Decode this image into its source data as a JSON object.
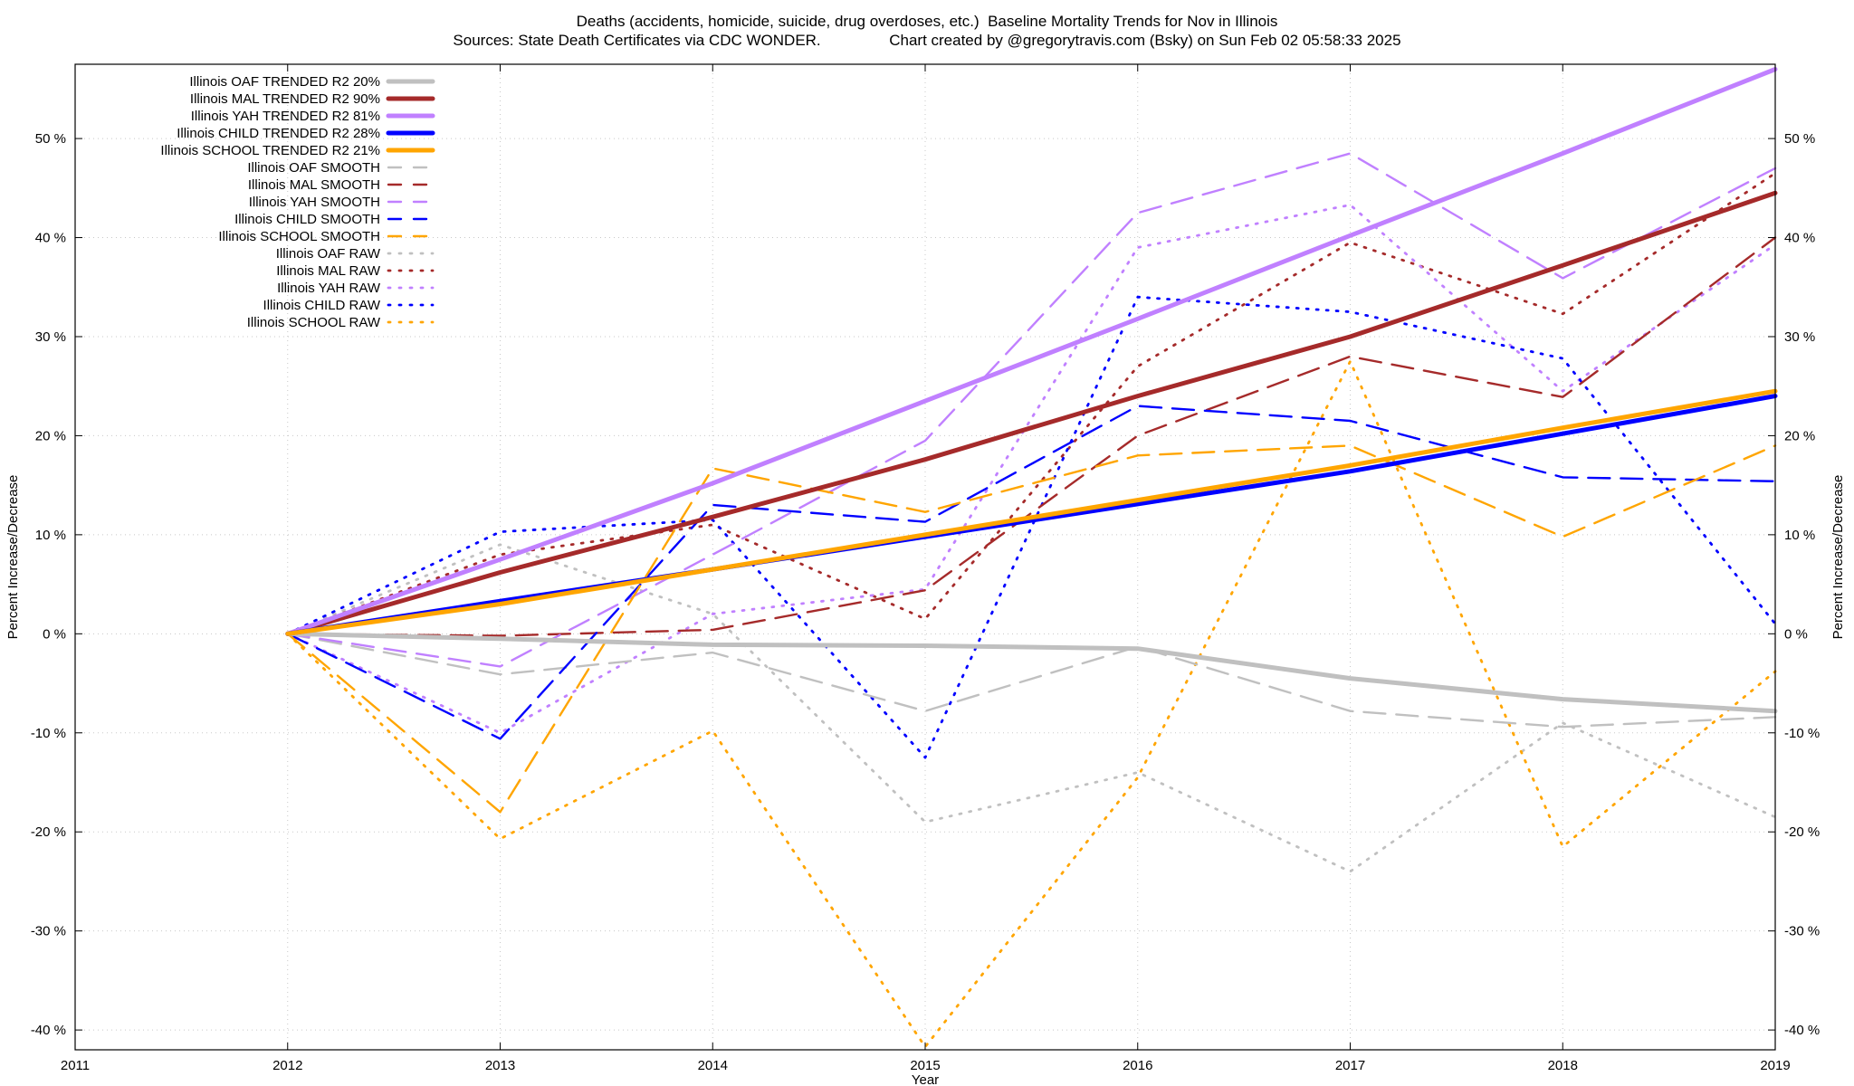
{
  "chart_data": {
    "type": "line",
    "title": "Deaths (accidents, homicide, suicide, drug overdoses, etc.)  Baseline Mortality Trends for Nov in Illinois",
    "subtitle": "Sources: State Death Certificates via CDC WONDER.                Chart created by @gregorytravis.com (Bsky) on Sun Feb 02 05:58:33 2025",
    "xlabel": "Year",
    "ylabel": "Percent Increase/Decrease",
    "y2label": "Percent Increase/Decrease",
    "xlim": [
      2011,
      2019
    ],
    "ylim": [
      -42,
      57.5
    ],
    "x_ticks": [
      "2011",
      "2012",
      "2013",
      "2014",
      "2015",
      "2016",
      "2017",
      "2018",
      "2019"
    ],
    "y_ticks": [
      {
        "value": 50,
        "label": "50 %"
      },
      {
        "value": 40,
        "label": "40 %"
      },
      {
        "value": 30,
        "label": "30 %"
      },
      {
        "value": 20,
        "label": "20 %"
      },
      {
        "value": 10,
        "label": "10 %"
      },
      {
        "value": 0,
        "label": "0 %"
      },
      {
        "value": -10,
        "label": "-10 %"
      },
      {
        "value": -20,
        "label": "-20 %"
      },
      {
        "value": -30,
        "label": "-30 %"
      },
      {
        "value": -40,
        "label": "-40 %"
      }
    ],
    "grid": true,
    "legend_position": "top-left",
    "x": [
      2012,
      2013,
      2014,
      2015,
      2016,
      2017,
      2018,
      2019
    ],
    "series": [
      {
        "name": "Illinois OAF TRENDED R2  20%",
        "style": "solid",
        "color": "#c0c0c0",
        "values": [
          0,
          -0.5,
          -1.1,
          -1.2,
          -1.5,
          -4.5,
          -6.6,
          -7.8
        ]
      },
      {
        "name": "Illinois MAL TRENDED R2  90%",
        "style": "solid",
        "color": "#a52a2a",
        "values": [
          0,
          6.2,
          11.8,
          17.6,
          24.0,
          30.0,
          37.2,
          44.5
        ]
      },
      {
        "name": "Illinois YAH TRENDED R2  81%",
        "style": "solid",
        "color": "#c080ff",
        "values": [
          0,
          7.5,
          15.2,
          23.5,
          31.8,
          40.2,
          48.5,
          57.0
        ]
      },
      {
        "name": "Illinois CHILD TRENDED R2  28%",
        "style": "solid",
        "color": "#0000ff",
        "values": [
          0,
          3.3,
          6.5,
          9.8,
          13.1,
          16.4,
          20.2,
          24.0
        ]
      },
      {
        "name": "Illinois SCHOOL TRENDED R2  21%",
        "style": "solid",
        "color": "#ffa500",
        "values": [
          0,
          3.0,
          6.5,
          10.0,
          13.5,
          17.0,
          20.8,
          24.5
        ]
      },
      {
        "name": "Illinois OAF SMOOTH",
        "style": "dashed",
        "color": "#c0c0c0",
        "values": [
          0,
          -4.1,
          -1.9,
          -7.8,
          -1.3,
          -7.8,
          -9.4,
          -8.4
        ]
      },
      {
        "name": "Illinois MAL SMOOTH",
        "style": "dashed",
        "color": "#a52a2a",
        "values": [
          0,
          -0.2,
          0.4,
          4.4,
          20.0,
          28.0,
          23.9,
          40.0
        ]
      },
      {
        "name": "Illinois YAH SMOOTH",
        "style": "dashed",
        "color": "#c080ff",
        "values": [
          0,
          -3.3,
          8.0,
          19.5,
          42.5,
          48.5,
          35.9,
          47.0
        ]
      },
      {
        "name": "Illinois CHILD SMOOTH",
        "style": "dashed",
        "color": "#0000ff",
        "values": [
          0,
          -10.6,
          13.0,
          11.3,
          23.0,
          21.5,
          15.8,
          15.4
        ]
      },
      {
        "name": "Illinois SCHOOL SMOOTH",
        "style": "dashed",
        "color": "#ffa500",
        "values": [
          0,
          -18.0,
          16.7,
          12.3,
          18.0,
          19.0,
          9.8,
          19.0
        ]
      },
      {
        "name": "Illinois OAF RAW",
        "style": "dotted",
        "color": "#c0c0c0",
        "values": [
          0,
          9.0,
          2.0,
          -19.0,
          -14.0,
          -24.0,
          -9.0,
          -18.5
        ]
      },
      {
        "name": "Illinois MAL RAW",
        "style": "dotted",
        "color": "#a52a2a",
        "values": [
          0,
          8.0,
          11.0,
          1.5,
          27.0,
          39.5,
          32.3,
          46.5
        ]
      },
      {
        "name": "Illinois YAH RAW",
        "style": "dotted",
        "color": "#c080ff",
        "values": [
          0,
          -10.0,
          2.0,
          4.5,
          39.0,
          43.3,
          24.5,
          39.3
        ]
      },
      {
        "name": "Illinois CHILD RAW",
        "style": "dotted",
        "color": "#0000ff",
        "values": [
          0,
          10.3,
          11.5,
          -12.5,
          34.0,
          32.5,
          27.8,
          1.0
        ]
      },
      {
        "name": "Illinois SCHOOL RAW",
        "style": "dotted",
        "color": "#ffa500",
        "values": [
          0,
          -20.7,
          -9.8,
          -41.7,
          -14.5,
          27.5,
          -21.5,
          -3.8
        ]
      }
    ]
  }
}
